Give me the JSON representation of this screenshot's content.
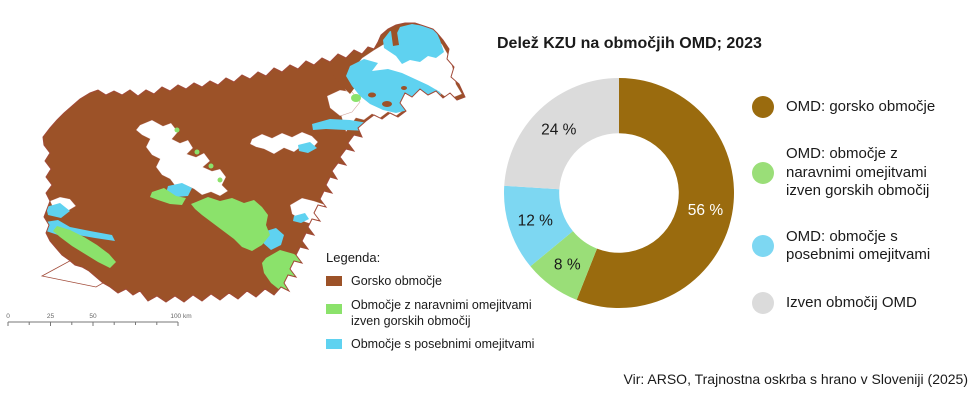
{
  "chart": {
    "title": "Delež KZU na območjih OMD; 2023",
    "legend": [
      {
        "label": "OMD: gorsko območje"
      },
      {
        "label": "OMD: območje z\nnaravnimi omejitvami\nizven gorskih območij"
      },
      {
        "label": "OMD: območje s\nposebnimi omejitvami"
      },
      {
        "label": "Izven območij OMD"
      }
    ]
  },
  "chart_data": {
    "type": "pie",
    "subtype": "donut",
    "title": "Delež KZU na območjih OMD; 2023",
    "labels": [
      "OMD: gorsko območje",
      "OMD: območje z naravnimi omejitvami izven gorskih območij",
      "OMD: območje s posebnimi omejitvami",
      "Izven območij OMD"
    ],
    "values": [
      56,
      8,
      12,
      24
    ],
    "unit": "%",
    "display_labels": [
      "56 %",
      "8 %",
      "12 %",
      "24 %"
    ],
    "colors": [
      "#9A6B0E",
      "#9ADE78",
      "#7DD7F2",
      "#DBDBDB"
    ],
    "label_text_colors": [
      "#FFFFFF",
      "#1A1A1A",
      "#1A1A1A",
      "#1A1A1A"
    ],
    "start_angle_deg": 0,
    "direction": "clockwise",
    "inner_radius_ratio": 0.52,
    "legend_position": "right",
    "labels_inside": true
  },
  "map": {
    "region": "Slovenija",
    "legend": {
      "title": "Legenda:",
      "items": [
        {
          "label": "Gorsko območje"
        },
        {
          "label": "Območje z naravnimi omejitvami\nizven gorskih območij"
        },
        {
          "label": "Območje s posebnimi omejitvami"
        }
      ]
    },
    "scale_bar": {
      "tick_labels": [
        "0",
        "25",
        "50",
        "100 km"
      ]
    },
    "colors": {
      "gorsko": "#9C5228",
      "naravne": "#8BE26B",
      "posebne": "#5FD2F0",
      "izven": "#FFFFFF",
      "border": "#A14A38",
      "scale": "#777777"
    }
  },
  "source": "Vir: ARSO, Trajnostna oskrba s hrano v Sloveniji (2025)"
}
